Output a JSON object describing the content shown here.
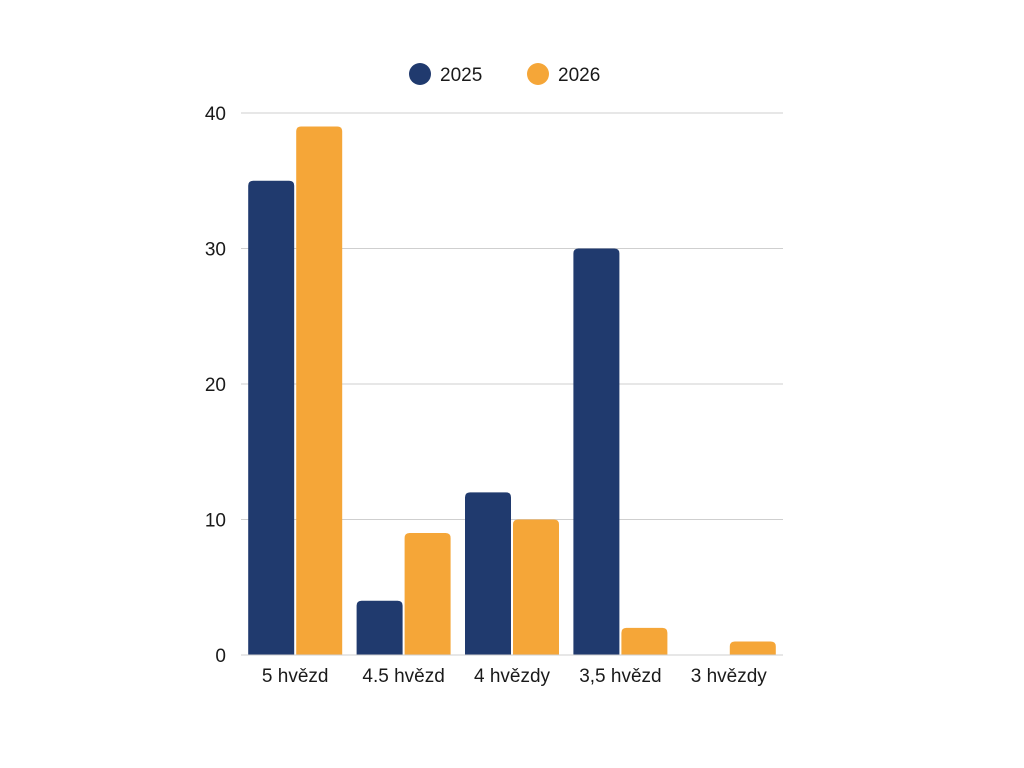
{
  "chart_data": {
    "type": "bar",
    "categories": [
      "5 hvězd",
      "4.5 hvězd",
      "4 hvězdy",
      "3,5 hvězd",
      "3 hvězdy"
    ],
    "series": [
      {
        "name": "2025",
        "color": "#203a6e",
        "values": [
          35,
          4,
          12,
          30,
          0
        ]
      },
      {
        "name": "2026",
        "color": "#f5a638",
        "values": [
          39,
          9,
          10,
          2,
          1
        ]
      }
    ],
    "ylim": [
      0,
      40
    ],
    "yticks": [
      0,
      10,
      20,
      30,
      40
    ],
    "grid": true,
    "legend": "top-center"
  }
}
